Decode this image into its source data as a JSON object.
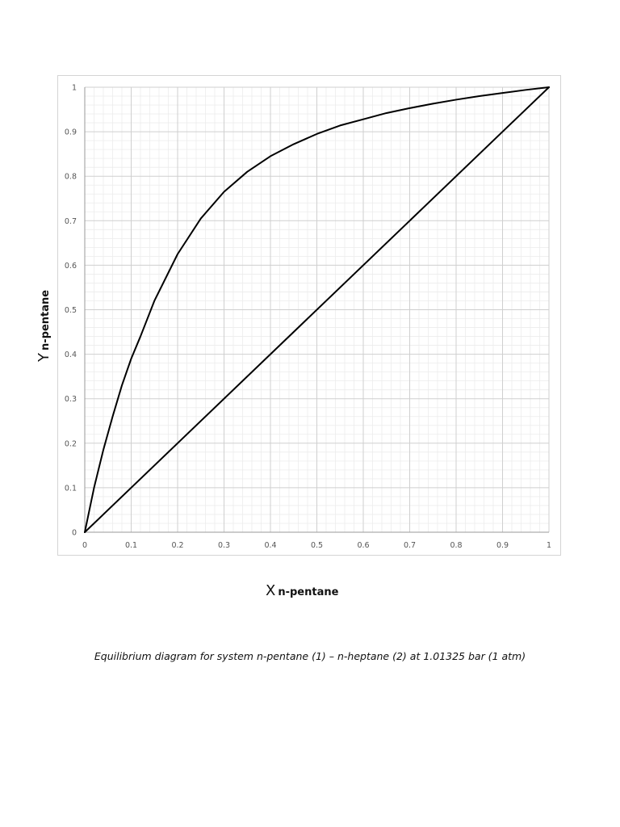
{
  "chart_data": {
    "type": "line",
    "caption": "Equilibrium diagram for system n-pentane (1) – n-heptane (2) at 1.01325 bar (1 atm)",
    "xlabel": {
      "main": "X",
      "sub": "n-pentane"
    },
    "ylabel": {
      "main": "Y",
      "sub": "n-pentane"
    },
    "xlim": [
      0,
      1
    ],
    "ylim": [
      0,
      1
    ],
    "x_ticks": [
      "0",
      "0.1",
      "0.2",
      "0.3",
      "0.4",
      "0.5",
      "0.6",
      "0.7",
      "0.8",
      "0.9",
      "1"
    ],
    "y_ticks": [
      "0",
      "0.1",
      "0.2",
      "0.3",
      "0.4",
      "0.5",
      "0.6",
      "0.7",
      "0.8",
      "0.9",
      "1"
    ],
    "x_tick_values": [
      0,
      0.1,
      0.2,
      0.3,
      0.4,
      0.5,
      0.6,
      0.7,
      0.8,
      0.9,
      1
    ],
    "y_tick_values": [
      0,
      0.1,
      0.2,
      0.3,
      0.4,
      0.5,
      0.6,
      0.7,
      0.8,
      0.9,
      1
    ],
    "grid": {
      "major": true,
      "minor": true
    },
    "legend": "none",
    "line_color": "#000000",
    "series": [
      {
        "x": [
          0,
          0.02,
          0.04,
          0.06,
          0.08,
          0.1,
          0.12,
          0.15,
          0.2,
          0.25,
          0.3,
          0.35,
          0.4,
          0.45,
          0.5,
          0.55,
          0.6,
          0.65,
          0.7,
          0.75,
          0.8,
          0.85,
          0.9,
          0.95,
          1
        ],
        "y": [
          0,
          0.1,
          0.185,
          0.26,
          0.33,
          0.39,
          0.44,
          0.52,
          0.625,
          0.705,
          0.765,
          0.81,
          0.845,
          0.872,
          0.895,
          0.914,
          0.928,
          0.942,
          0.953,
          0.963,
          0.972,
          0.98,
          0.987,
          0.994,
          1
        ]
      },
      {
        "x": [
          0,
          1
        ],
        "y": [
          0,
          1
        ]
      }
    ]
  }
}
